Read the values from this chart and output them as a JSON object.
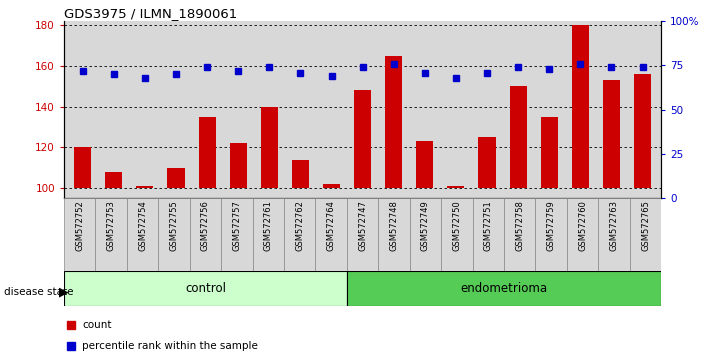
{
  "title": "GDS3975 / ILMN_1890061",
  "samples": [
    "GSM572752",
    "GSM572753",
    "GSM572754",
    "GSM572755",
    "GSM572756",
    "GSM572757",
    "GSM572761",
    "GSM572762",
    "GSM572764",
    "GSM572747",
    "GSM572748",
    "GSM572749",
    "GSM572750",
    "GSM572751",
    "GSM572758",
    "GSM572759",
    "GSM572760",
    "GSM572763",
    "GSM572765"
  ],
  "bar_values": [
    120,
    108,
    101,
    110,
    135,
    122,
    140,
    114,
    102,
    148,
    165,
    123,
    101,
    125,
    150,
    135,
    180,
    153,
    156
  ],
  "dot_values": [
    72,
    70,
    68,
    70,
    74,
    72,
    74,
    71,
    69,
    74,
    76,
    71,
    68,
    71,
    74,
    73,
    76,
    74,
    74
  ],
  "control_count": 9,
  "endometrioma_count": 10,
  "ylim_left": [
    95,
    182
  ],
  "ylim_right": [
    0,
    100
  ],
  "left_ticks": [
    100,
    120,
    140,
    160,
    180
  ],
  "right_ticks": [
    0,
    25,
    50,
    75,
    100
  ],
  "right_tick_labels": [
    "0",
    "25",
    "50",
    "75",
    "100%"
  ],
  "bar_color": "#cc0000",
  "dot_color": "#0000cc",
  "control_color": "#ccffcc",
  "endometrioma_color": "#55cc55",
  "plot_bg_color": "#d8d8d8"
}
